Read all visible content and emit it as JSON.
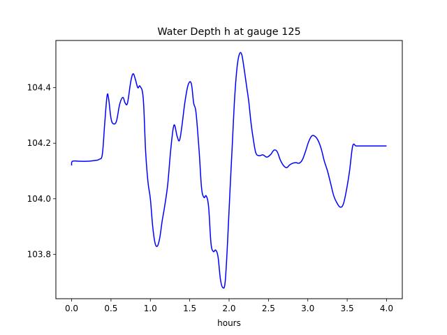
{
  "chart_data": {
    "type": "line",
    "title": "Water Depth h at gauge 125",
    "xlabel": "hours",
    "ylabel": "",
    "xlim": [
      -0.2,
      4.2
    ],
    "ylim": [
      103.64,
      104.57
    ],
    "xticks": [
      0.0,
      0.5,
      1.0,
      1.5,
      2.0,
      2.5,
      3.0,
      3.5,
      4.0
    ],
    "xtick_labels": [
      "0.0",
      "0.5",
      "1.0",
      "1.5",
      "2.0",
      "2.5",
      "3.0",
      "3.5",
      "4.0"
    ],
    "yticks": [
      103.8,
      104.0,
      104.2,
      104.4
    ],
    "ytick_labels": [
      "103.8",
      "104.0",
      "104.2",
      "104.4"
    ],
    "grid": false,
    "series": [
      {
        "color": "#0000ff",
        "x": [
          0.0,
          0.01,
          0.1,
          0.2,
          0.3,
          0.35,
          0.39,
          0.42,
          0.45,
          0.47,
          0.5,
          0.53,
          0.57,
          0.61,
          0.65,
          0.68,
          0.71,
          0.75,
          0.78,
          0.81,
          0.84,
          0.87,
          0.91,
          0.94,
          0.97,
          1.0,
          1.03,
          1.06,
          1.09,
          1.12,
          1.15,
          1.18,
          1.22,
          1.26,
          1.3,
          1.34,
          1.37,
          1.4,
          1.44,
          1.48,
          1.52,
          1.55,
          1.58,
          1.62,
          1.65,
          1.68,
          1.71,
          1.74,
          1.77,
          1.8,
          1.83,
          1.86,
          1.89,
          1.92,
          1.95,
          1.98,
          2.01,
          2.04,
          2.07,
          2.1,
          2.13,
          2.16,
          2.19,
          2.22,
          2.25,
          2.28,
          2.31,
          2.34,
          2.38,
          2.43,
          2.48,
          2.53,
          2.57,
          2.61,
          2.65,
          2.69,
          2.73,
          2.77,
          2.81,
          2.85,
          2.89,
          2.93,
          2.97,
          3.01,
          3.05,
          3.09,
          3.13,
          3.17,
          3.21,
          3.25,
          3.29,
          3.33,
          3.37,
          3.41,
          3.45,
          3.49,
          3.53,
          3.57,
          3.61,
          3.65,
          3.69,
          3.73,
          3.77,
          3.81,
          3.85,
          3.89,
          3.93,
          3.97,
          4.0
        ],
        "y": [
          104.12,
          104.135,
          104.135,
          104.135,
          104.138,
          104.142,
          104.16,
          104.27,
          104.37,
          104.36,
          104.29,
          104.27,
          104.28,
          104.34,
          104.365,
          104.345,
          104.345,
          104.42,
          104.45,
          104.43,
          104.4,
          104.405,
          104.36,
          104.17,
          104.06,
          104.0,
          103.9,
          103.84,
          103.83,
          103.86,
          103.92,
          103.97,
          104.05,
          104.18,
          104.265,
          104.225,
          104.21,
          104.26,
          104.35,
          104.41,
          104.415,
          104.345,
          104.31,
          104.17,
          104.04,
          104.005,
          104.01,
          103.97,
          103.84,
          103.81,
          103.815,
          103.79,
          103.71,
          103.68,
          103.7,
          103.84,
          104.02,
          104.19,
          104.36,
          104.47,
          104.52,
          104.52,
          104.47,
          104.41,
          104.35,
          104.27,
          104.21,
          104.165,
          104.155,
          104.158,
          104.15,
          104.16,
          104.175,
          104.17,
          104.14,
          104.12,
          104.112,
          104.122,
          104.128,
          104.13,
          104.128,
          104.14,
          104.17,
          104.205,
          104.226,
          104.225,
          104.21,
          104.18,
          104.135,
          104.1,
          104.055,
          104.01,
          103.985,
          103.97,
          103.98,
          104.03,
          104.1,
          104.19,
          104.19,
          104.19,
          104.19,
          104.19,
          104.19,
          104.19,
          104.19,
          104.19,
          104.19,
          104.19,
          104.19
        ]
      }
    ]
  }
}
